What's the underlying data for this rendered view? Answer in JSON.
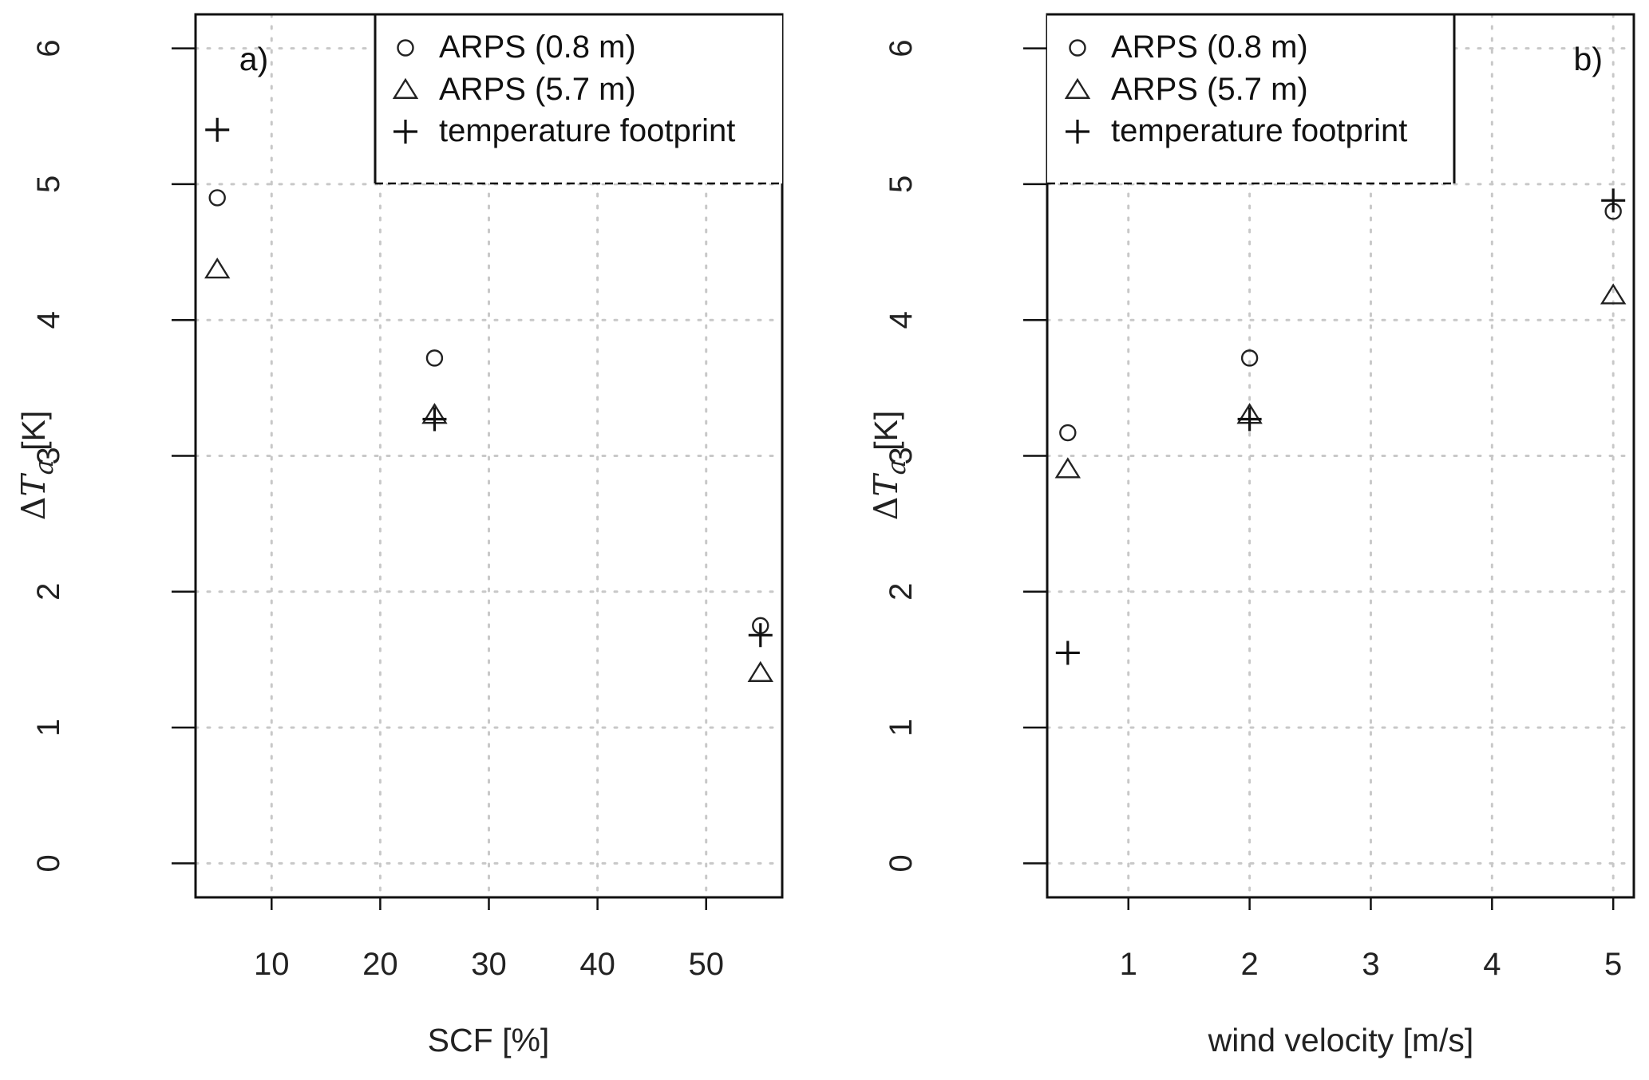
{
  "chart_data": [
    {
      "type": "scatter",
      "panel_label": "a)",
      "xlabel": "SCF [%]",
      "ylabel": "ΔT_a [K]",
      "ylabel_parts": {
        "delta": "Δ",
        "symbol": "T",
        "subscript": "a",
        "unit": "[K]"
      },
      "xlim": [
        3,
        57
      ],
      "ylim": [
        -0.25,
        6.25
      ],
      "xticks": [
        10,
        20,
        30,
        40,
        50
      ],
      "yticks": [
        0,
        1,
        2,
        3,
        4,
        5,
        6
      ],
      "grid": true,
      "legend_position": "top-right",
      "series": [
        {
          "name": "ARPS (0.8 m)",
          "marker": "circle",
          "x": [
            5,
            25,
            55
          ],
          "y": [
            4.9,
            3.72,
            1.75
          ]
        },
        {
          "name": "ARPS (5.7 m)",
          "marker": "triangle",
          "x": [
            5,
            25,
            55
          ],
          "y": [
            4.37,
            3.3,
            1.4
          ]
        },
        {
          "name": "temperature footprint",
          "marker": "plus",
          "x": [
            5,
            25,
            55
          ],
          "y": [
            5.4,
            3.27,
            1.68
          ]
        }
      ]
    },
    {
      "type": "scatter",
      "panel_label": "b)",
      "xlabel": "wind velocity [m/s]",
      "ylabel": "ΔT_a [K]",
      "ylabel_parts": {
        "delta": "Δ",
        "symbol": "T",
        "subscript": "a",
        "unit": "[K]"
      },
      "xlim": [
        0.33,
        5.17
      ],
      "ylim": [
        -0.25,
        6.25
      ],
      "xticks": [
        1,
        2,
        3,
        4,
        5
      ],
      "yticks": [
        0,
        1,
        2,
        3,
        4,
        5,
        6
      ],
      "grid": true,
      "legend_position": "top-left",
      "series": [
        {
          "name": "ARPS (0.8 m)",
          "marker": "circle",
          "x": [
            0.5,
            2,
            5
          ],
          "y": [
            3.17,
            3.72,
            4.8
          ]
        },
        {
          "name": "ARPS (5.7 m)",
          "marker": "triangle",
          "x": [
            0.5,
            2,
            5
          ],
          "y": [
            2.9,
            3.3,
            4.18
          ]
        },
        {
          "name": "temperature footprint",
          "marker": "plus",
          "x": [
            0.5,
            2,
            5
          ],
          "y": [
            1.55,
            3.27,
            4.88
          ]
        }
      ]
    }
  ]
}
